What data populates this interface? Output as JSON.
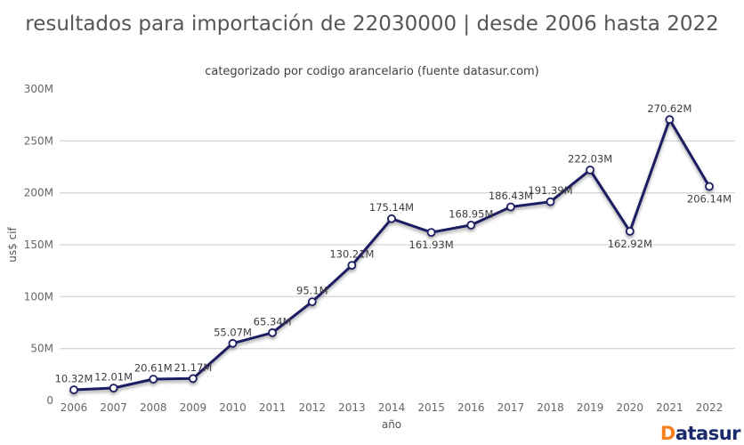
{
  "header": {
    "title": "resultados para importación de 22030000 | desde 2006 hasta 2022",
    "subtitle": "categorizado por codigo arancelario (fuente datasur.com)"
  },
  "watermark": {
    "prefix": "D",
    "rest": "atasur",
    "prefix_color": "#f5821e",
    "text_color": "#1b2a6b"
  },
  "chart_data": {
    "type": "line",
    "title": "resultados para importación de 22030000 | desde 2006 hasta 2022",
    "subtitle": "categorizado por codigo arancelario (fuente datasur.com)",
    "xlabel": "año",
    "ylabel": "us$ cif",
    "unit": "M",
    "x": [
      "2006",
      "2007",
      "2008",
      "2009",
      "2010",
      "2011",
      "2012",
      "2013",
      "2014",
      "2015",
      "2016",
      "2017",
      "2018",
      "2019",
      "2020",
      "2021",
      "2022"
    ],
    "values": [
      10.32,
      12.01,
      20.61,
      21.17,
      55.07,
      65.34,
      95.1,
      130.21,
      175.14,
      161.93,
      168.95,
      186.43,
      191.39,
      222.03,
      162.92,
      270.62,
      206.14
    ],
    "point_labels": [
      "10.32M",
      "12.01M",
      "20.61M",
      "21.17M",
      "55.07M",
      "65.34M",
      "95.1M",
      "130.21M",
      "175.14M",
      "161.93M",
      "168.95M",
      "186.43M",
      "191.39M",
      "222.03M",
      "162.92M",
      "270.62M",
      "206.14M"
    ],
    "label_side": [
      "above",
      "above",
      "above",
      "above",
      "above",
      "above",
      "above",
      "above",
      "above",
      "below",
      "above",
      "above",
      "above",
      "above",
      "below",
      "above",
      "below"
    ],
    "ylim": [
      0,
      300
    ],
    "yticks": [
      {
        "v": 0,
        "label": "0"
      },
      {
        "v": 50,
        "label": "50M"
      },
      {
        "v": 100,
        "label": "100M"
      },
      {
        "v": 150,
        "label": "150M"
      },
      {
        "v": 200,
        "label": "200M"
      },
      {
        "v": 250,
        "label": "250M"
      },
      {
        "v": 300,
        "label": "300M"
      }
    ],
    "grid_values": [
      50,
      100,
      150,
      200,
      250
    ],
    "legend_position": "none",
    "colors": {
      "line": "#1b1b63",
      "marker_fill": "#ffffff",
      "marker_stroke": "#1b1b63",
      "grid": "#cccccc",
      "tick_text": "#666666",
      "label_text": "#3d3d3d"
    }
  }
}
